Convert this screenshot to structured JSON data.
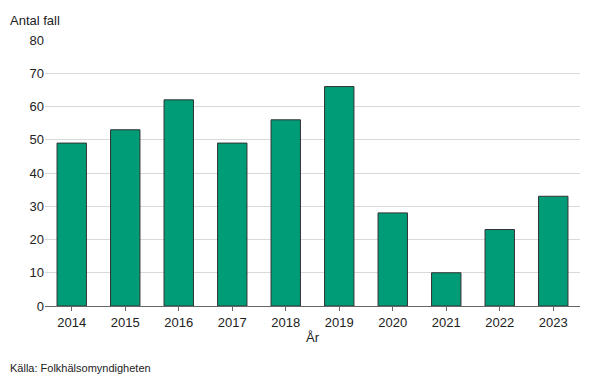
{
  "chart_data": {
    "type": "bar",
    "ylabel": "Antal fall",
    "xlabel": "År",
    "annotations": [
      "Källa: Folkhälsomyndigheten"
    ],
    "categories": [
      "2014",
      "2015",
      "2016",
      "2017",
      "2018",
      "2019",
      "2020",
      "2021",
      "2022",
      "2023"
    ],
    "values": [
      49,
      53,
      62,
      49,
      56,
      66,
      28,
      10,
      23,
      33
    ],
    "color": "#009b77",
    "ylim": [
      0,
      80
    ],
    "yticks": [
      0,
      10,
      20,
      30,
      40,
      50,
      60,
      70,
      80
    ],
    "grid": true
  }
}
